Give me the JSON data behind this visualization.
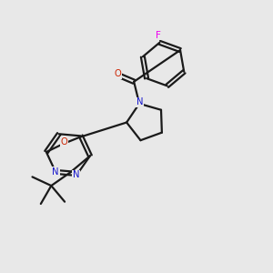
{
  "background_color": "#e8e8e8",
  "bond_color": "#1a1a1a",
  "nitrogen_color": "#1414cc",
  "oxygen_color": "#cc2200",
  "fluorine_color": "#ee00ee",
  "line_width": 1.6,
  "figsize": [
    3.0,
    3.0
  ],
  "dpi": 100,
  "xlim": [
    0,
    10
  ],
  "ylim": [
    0,
    10
  ]
}
